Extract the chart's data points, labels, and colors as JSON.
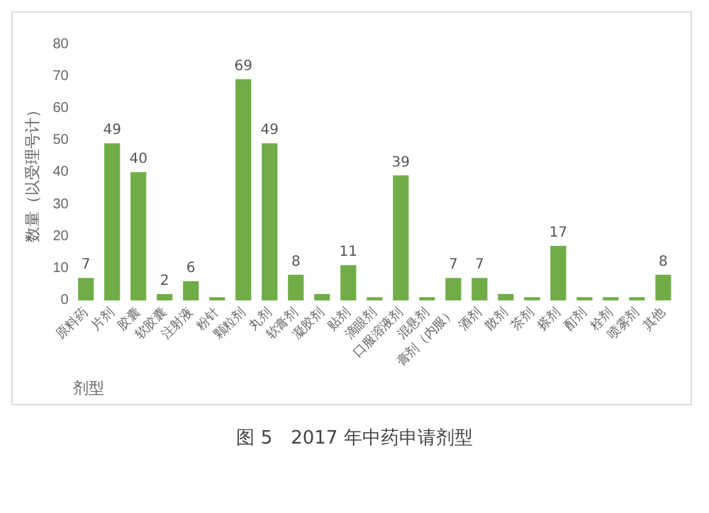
{
  "chart_data": {
    "type": "bar",
    "title": "图 5　2017 年中药申请剂型",
    "xlabel": "剂型",
    "ylabel": "数量（以受理号计）",
    "categories": [
      "原料药",
      "片剂",
      "胶囊",
      "软胶囊",
      "注射液",
      "粉针",
      "颗粒剂",
      "丸剂",
      "软膏剂",
      "凝胶剂",
      "贴剂",
      "滴眼剂",
      "口服溶液剂",
      "混悬剂",
      "膏剂（内服）",
      "酒剂",
      "散剂",
      "茶剂",
      "搽剂",
      "酊剂",
      "栓剂",
      "喷雾剂",
      "其他"
    ],
    "values": [
      7,
      49,
      40,
      2,
      6,
      1,
      69,
      49,
      8,
      2,
      11,
      1,
      39,
      1,
      7,
      7,
      2,
      1,
      17,
      1,
      1,
      1,
      8
    ],
    "value_labels": [
      "7",
      "49",
      "40",
      "2",
      "6",
      null,
      "69",
      "49",
      "8",
      null,
      "11",
      null,
      "39",
      null,
      "7",
      "7",
      null,
      null,
      "17",
      null,
      null,
      null,
      "8"
    ],
    "color": "#70ad47",
    "ylim": [
      0,
      80
    ],
    "yticks": [
      0,
      10,
      20,
      30,
      40,
      50,
      60,
      70,
      80
    ],
    "grid": false,
    "legend": false
  }
}
